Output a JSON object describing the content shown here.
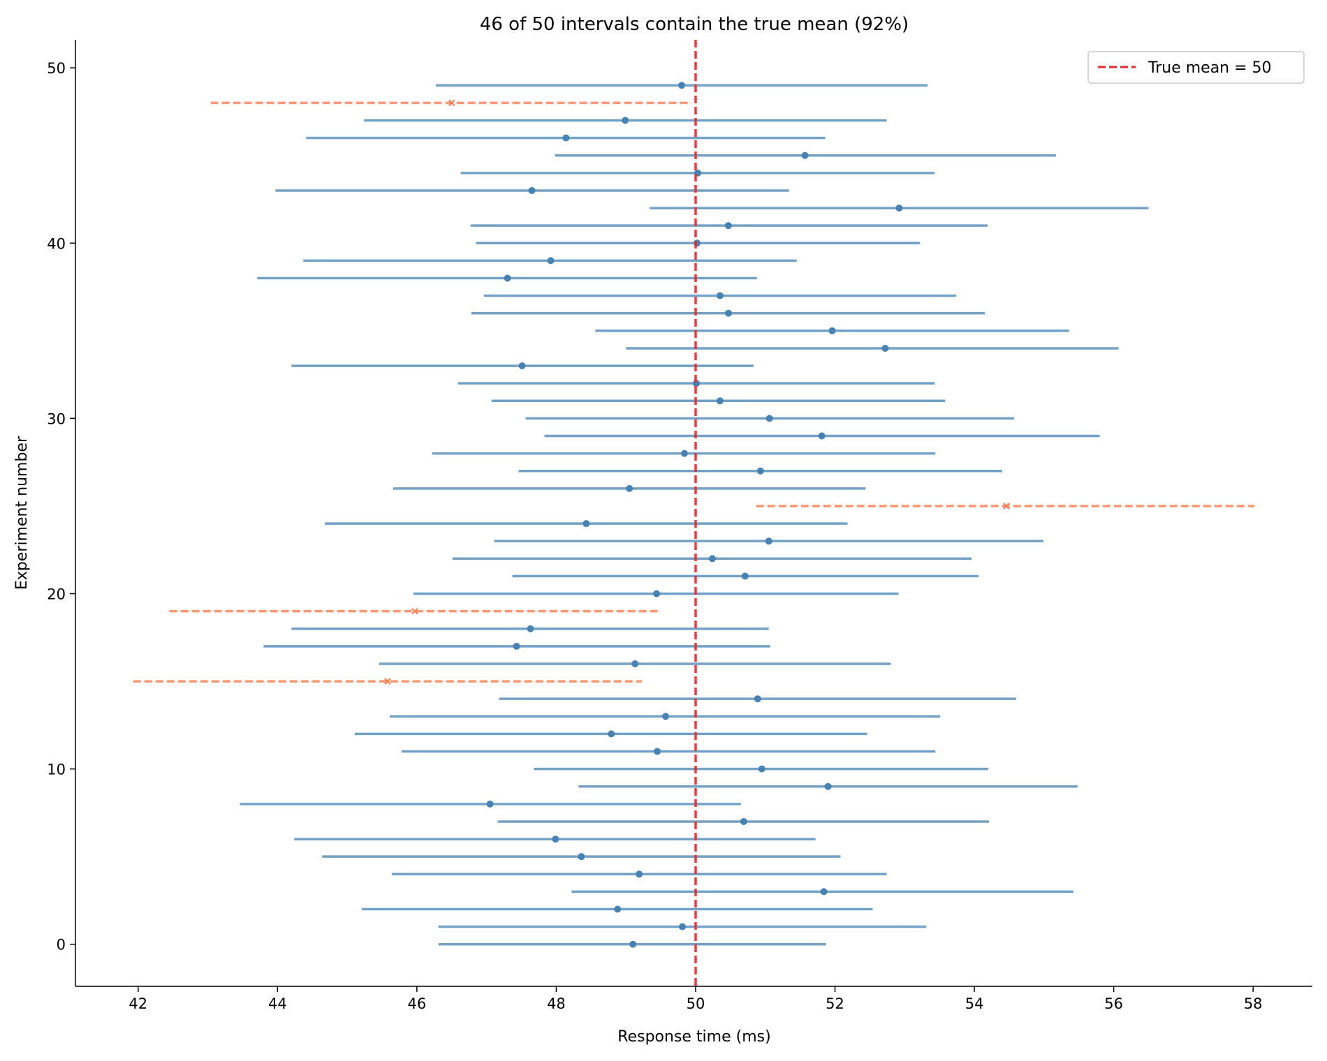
{
  "chart_data": {
    "type": "errorbar",
    "title": "46 of 50 intervals contain the true mean (92%)",
    "xlabel": "Response time (ms)",
    "ylabel": "Experiment number",
    "xlim": [
      41.1,
      58.85
    ],
    "ylim": [
      -2.4,
      51.6
    ],
    "xticks": [
      42,
      44,
      46,
      48,
      50,
      52,
      54,
      56,
      58
    ],
    "yticks": [
      0,
      10,
      20,
      30,
      40,
      50
    ],
    "grid": false,
    "legend": {
      "position": "top-right",
      "entries": [
        "True mean = 50"
      ]
    },
    "true_mean": 50,
    "colors": {
      "contains": "#4682b4",
      "misses": "#ff7f50",
      "true_mean": "#e8292b"
    },
    "intervals": [
      {
        "experiment": 0,
        "lower": 46.31,
        "upper": 51.87,
        "mean": 49.1,
        "contains": true
      },
      {
        "experiment": 1,
        "lower": 46.31,
        "upper": 53.31,
        "mean": 49.81,
        "contains": true
      },
      {
        "experiment": 2,
        "lower": 45.21,
        "upper": 52.54,
        "mean": 48.88,
        "contains": true
      },
      {
        "experiment": 3,
        "lower": 48.22,
        "upper": 55.42,
        "mean": 51.84,
        "contains": true
      },
      {
        "experiment": 4,
        "lower": 45.64,
        "upper": 52.74,
        "mean": 49.19,
        "contains": true
      },
      {
        "experiment": 5,
        "lower": 44.64,
        "upper": 52.08,
        "mean": 48.36,
        "contains": true
      },
      {
        "experiment": 6,
        "lower": 44.24,
        "upper": 51.72,
        "mean": 47.99,
        "contains": true
      },
      {
        "experiment": 7,
        "lower": 47.16,
        "upper": 54.21,
        "mean": 50.69,
        "contains": true
      },
      {
        "experiment": 8,
        "lower": 43.46,
        "upper": 50.65,
        "mean": 47.05,
        "contains": true
      },
      {
        "experiment": 9,
        "lower": 48.32,
        "upper": 55.48,
        "mean": 51.9,
        "contains": true
      },
      {
        "experiment": 10,
        "lower": 47.68,
        "upper": 54.2,
        "mean": 50.95,
        "contains": true
      },
      {
        "experiment": 11,
        "lower": 45.78,
        "upper": 53.44,
        "mean": 49.45,
        "contains": true
      },
      {
        "experiment": 12,
        "lower": 45.11,
        "upper": 52.46,
        "mean": 48.79,
        "contains": true
      },
      {
        "experiment": 13,
        "lower": 45.61,
        "upper": 53.51,
        "mean": 49.57,
        "contains": true
      },
      {
        "experiment": 14,
        "lower": 47.18,
        "upper": 54.6,
        "mean": 50.89,
        "contains": true
      },
      {
        "experiment": 15,
        "lower": 41.93,
        "upper": 49.23,
        "mean": 45.58,
        "contains": false
      },
      {
        "experiment": 16,
        "lower": 45.46,
        "upper": 52.8,
        "mean": 49.13,
        "contains": true
      },
      {
        "experiment": 17,
        "lower": 43.8,
        "upper": 51.07,
        "mean": 47.43,
        "contains": true
      },
      {
        "experiment": 18,
        "lower": 44.2,
        "upper": 51.05,
        "mean": 47.63,
        "contains": true
      },
      {
        "experiment": 19,
        "lower": 42.45,
        "upper": 49.47,
        "mean": 45.97,
        "contains": false
      },
      {
        "experiment": 20,
        "lower": 45.95,
        "upper": 52.91,
        "mean": 49.44,
        "contains": true
      },
      {
        "experiment": 21,
        "lower": 47.37,
        "upper": 54.06,
        "mean": 50.71,
        "contains": true
      },
      {
        "experiment": 22,
        "lower": 46.51,
        "upper": 53.96,
        "mean": 50.24,
        "contains": true
      },
      {
        "experiment": 23,
        "lower": 47.11,
        "upper": 54.99,
        "mean": 51.05,
        "contains": true
      },
      {
        "experiment": 24,
        "lower": 44.68,
        "upper": 52.18,
        "mean": 48.43,
        "contains": true
      },
      {
        "experiment": 25,
        "lower": 50.87,
        "upper": 58.02,
        "mean": 54.46,
        "contains": false
      },
      {
        "experiment": 26,
        "lower": 45.66,
        "upper": 52.44,
        "mean": 49.05,
        "contains": true
      },
      {
        "experiment": 27,
        "lower": 47.46,
        "upper": 54.4,
        "mean": 50.93,
        "contains": true
      },
      {
        "experiment": 28,
        "lower": 46.22,
        "upper": 53.44,
        "mean": 49.84,
        "contains": true
      },
      {
        "experiment": 29,
        "lower": 47.83,
        "upper": 55.8,
        "mean": 51.81,
        "contains": true
      },
      {
        "experiment": 30,
        "lower": 47.56,
        "upper": 54.57,
        "mean": 51.06,
        "contains": true
      },
      {
        "experiment": 31,
        "lower": 47.07,
        "upper": 53.58,
        "mean": 50.35,
        "contains": true
      },
      {
        "experiment": 32,
        "lower": 46.59,
        "upper": 53.43,
        "mean": 50.01,
        "contains": true
      },
      {
        "experiment": 33,
        "lower": 44.2,
        "upper": 50.83,
        "mean": 47.51,
        "contains": true
      },
      {
        "experiment": 34,
        "lower": 49.0,
        "upper": 56.07,
        "mean": 52.72,
        "contains": true
      },
      {
        "experiment": 35,
        "lower": 48.56,
        "upper": 55.36,
        "mean": 51.96,
        "contains": true
      },
      {
        "experiment": 36,
        "lower": 46.78,
        "upper": 54.15,
        "mean": 50.47,
        "contains": true
      },
      {
        "experiment": 37,
        "lower": 46.96,
        "upper": 53.74,
        "mean": 50.35,
        "contains": true
      },
      {
        "experiment": 38,
        "lower": 43.71,
        "upper": 50.88,
        "mean": 47.3,
        "contains": true
      },
      {
        "experiment": 39,
        "lower": 44.37,
        "upper": 51.45,
        "mean": 47.92,
        "contains": true
      },
      {
        "experiment": 40,
        "lower": 46.85,
        "upper": 53.22,
        "mean": 50.02,
        "contains": true
      },
      {
        "experiment": 41,
        "lower": 46.77,
        "upper": 54.19,
        "mean": 50.47,
        "contains": true
      },
      {
        "experiment": 42,
        "lower": 49.34,
        "upper": 56.5,
        "mean": 52.92,
        "contains": true
      },
      {
        "experiment": 43,
        "lower": 43.97,
        "upper": 51.34,
        "mean": 47.65,
        "contains": true
      },
      {
        "experiment": 44,
        "lower": 46.63,
        "upper": 53.43,
        "mean": 50.03,
        "contains": true
      },
      {
        "experiment": 45,
        "lower": 47.98,
        "upper": 55.17,
        "mean": 51.57,
        "contains": true
      },
      {
        "experiment": 46,
        "lower": 44.41,
        "upper": 51.86,
        "mean": 48.14,
        "contains": true
      },
      {
        "experiment": 47,
        "lower": 45.24,
        "upper": 52.74,
        "mean": 48.99,
        "contains": true
      },
      {
        "experiment": 48,
        "lower": 43.04,
        "upper": 49.94,
        "mean": 46.5,
        "contains": false
      },
      {
        "experiment": 49,
        "lower": 46.27,
        "upper": 53.33,
        "mean": 49.8,
        "contains": true
      }
    ]
  }
}
